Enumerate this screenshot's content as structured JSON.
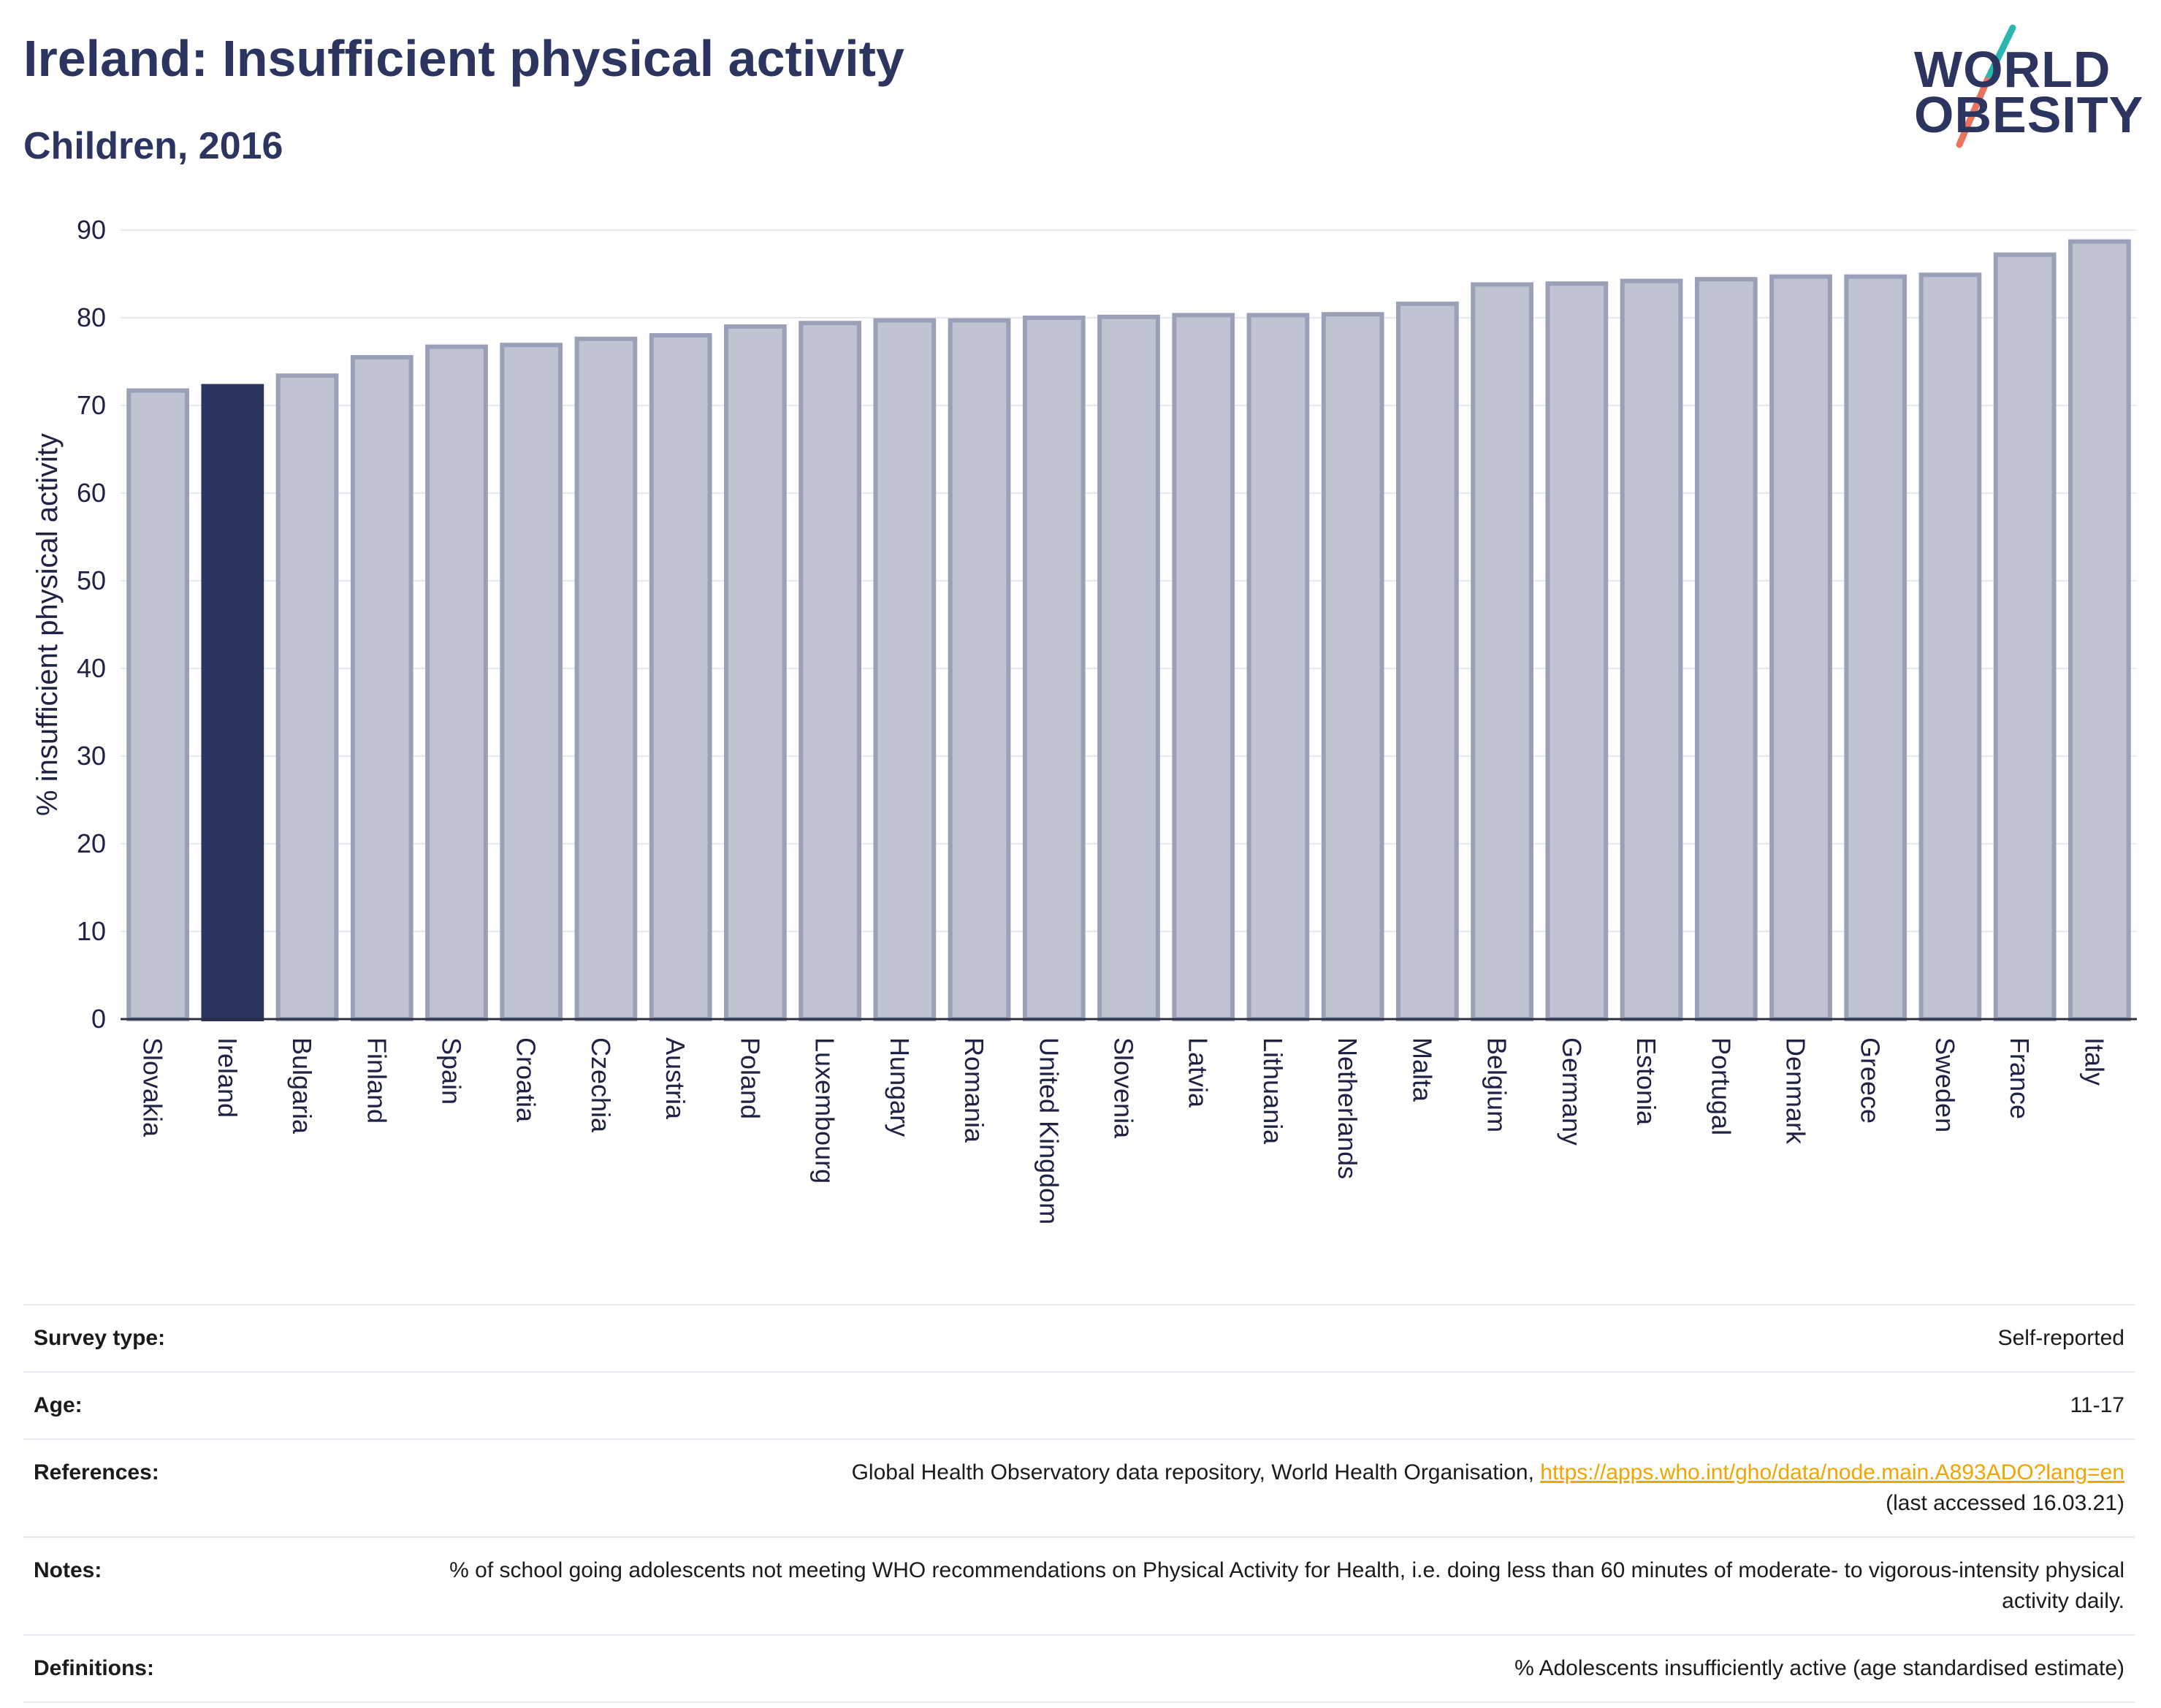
{
  "header": {
    "title": "Ireland: Insufficient physical activity",
    "subtitle": "Children, 2016"
  },
  "logo": {
    "line1": "WORLD",
    "line2": "OBESITY"
  },
  "colors": {
    "highlight": "#2b3560",
    "bar_fill": "#c0c3d1",
    "bar_stroke": "#9aa0b8",
    "grid": "#e6e8ef",
    "accent_teal": "#2bb6b0",
    "accent_coral": "#e8735e",
    "link": "#f0a500"
  },
  "chart_data": {
    "type": "bar",
    "ylabel": "% insufficient physical activity",
    "ylim": [
      0,
      90
    ],
    "yticks": [
      0,
      10,
      20,
      30,
      40,
      50,
      60,
      70,
      80,
      90
    ],
    "grid": true,
    "highlight": "Ireland",
    "categories": [
      "Slovakia",
      "Ireland",
      "Bulgaria",
      "Finland",
      "Spain",
      "Croatia",
      "Czechia",
      "Austria",
      "Poland",
      "Luxembourg",
      "Hungary",
      "Romania",
      "United Kingdom",
      "Slovenia",
      "Latvia",
      "Lithuania",
      "Netherlands",
      "Malta",
      "Belgium",
      "Germany",
      "Estonia",
      "Portugal",
      "Denmark",
      "Greece",
      "Sweden",
      "France",
      "Italy"
    ],
    "values": [
      71.7,
      72.2,
      73.4,
      75.5,
      76.7,
      76.9,
      77.6,
      78.0,
      79.0,
      79.4,
      79.7,
      79.7,
      80.0,
      80.1,
      80.3,
      80.3,
      80.4,
      81.6,
      83.8,
      83.9,
      84.2,
      84.4,
      84.7,
      84.7,
      84.9,
      87.2,
      88.7
    ]
  },
  "meta": {
    "survey_label": "Survey type:",
    "survey_value": "Self-reported",
    "age_label": "Age:",
    "age_value": "11-17",
    "ref_label": "References:",
    "ref_text": "Global Health Observatory data repository, World Health Organisation,",
    "ref_link": "https://apps.who.int/gho/data/node.main.A893ADO?lang=en",
    "ref_accessed": "(last accessed 16.03.21)",
    "notes_label": "Notes:",
    "notes_value": "% of school going adolescents not meeting WHO recommendations on Physical Activity for Health, i.e. doing less than 60 minutes of moderate- to vigorous-intensity physical activity daily.",
    "def_label": "Definitions:",
    "def_value": "% Adolescents insufficiently active (age standardised estimate)"
  }
}
